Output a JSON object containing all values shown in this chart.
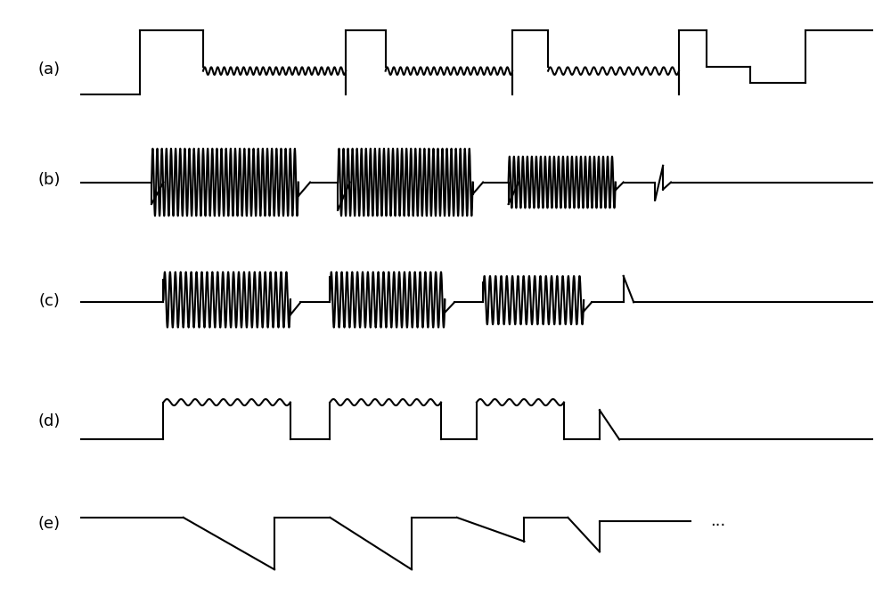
{
  "fig_width": 10.0,
  "fig_height": 6.69,
  "dpi": 100,
  "background_color": "#ffffff",
  "line_color": "#000000",
  "line_width": 1.5,
  "labels": [
    "(a)",
    "(b)",
    "(c)",
    "(d)",
    "(e)"
  ],
  "label_fontsize": 13,
  "dots_text": "..."
}
